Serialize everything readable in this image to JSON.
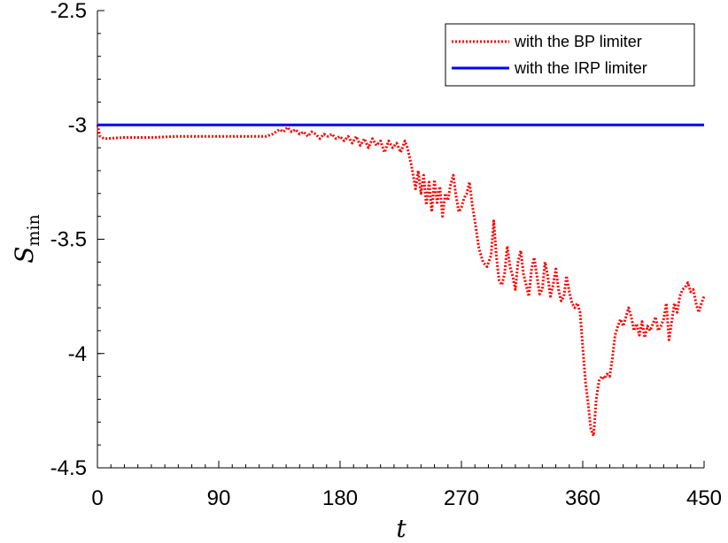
{
  "chart_data": {
    "type": "line",
    "xlabel": "t",
    "ylabel": "S",
    "ylabel_sub": "min",
    "xlim": [
      0,
      450
    ],
    "ylim": [
      -4.5,
      -2.5
    ],
    "xticks": [
      0,
      90,
      180,
      270,
      360,
      450
    ],
    "yticks": [
      -2.5,
      -3,
      -3.5,
      -4,
      -4.5
    ],
    "xtick_labels": [
      "0",
      "90",
      "180",
      "270",
      "360",
      "450"
    ],
    "ytick_labels": [
      "-2.5",
      "-3",
      "-3.5",
      "-4",
      "-4.5"
    ],
    "grid": false,
    "legend": "top-right",
    "series": [
      {
        "name": "with the BP limiter",
        "color": "#ff0000",
        "style": "dotted",
        "x": [
          0,
          2,
          5,
          20,
          40,
          60,
          80,
          100,
          120,
          125,
          130,
          135,
          138,
          141,
          144,
          147,
          150,
          153,
          156,
          159,
          162,
          165,
          168,
          171,
          174,
          177,
          180,
          183,
          186,
          189,
          192,
          195,
          198,
          201,
          204,
          207,
          210,
          213,
          216,
          219,
          222,
          225,
          228,
          230,
          233,
          236,
          238,
          240,
          242,
          244,
          246,
          248,
          250,
          252,
          254,
          256,
          258,
          260,
          262,
          264,
          266,
          268,
          270,
          272,
          274,
          276,
          278,
          280,
          283,
          286,
          289,
          292,
          294,
          296,
          298,
          300,
          302,
          304,
          306,
          308,
          310,
          312,
          314,
          316,
          318,
          320,
          322,
          324,
          326,
          328,
          330,
          332,
          334,
          336,
          338,
          340,
          342,
          344,
          346,
          348,
          350,
          352,
          354,
          356,
          358,
          360,
          362,
          364,
          366,
          368,
          370,
          372,
          374,
          376,
          378,
          380,
          382,
          384,
          386,
          388,
          390,
          392,
          394,
          396,
          398,
          400,
          402,
          404,
          406,
          408,
          410,
          412,
          414,
          416,
          418,
          420,
          422,
          424,
          426,
          428,
          430,
          432,
          434,
          436,
          438,
          440,
          442,
          444,
          446,
          448,
          450
        ],
        "y": [
          -3.0,
          -3.05,
          -3.06,
          -3.055,
          -3.055,
          -3.05,
          -3.05,
          -3.05,
          -3.05,
          -3.05,
          -3.04,
          -3.02,
          -3.03,
          -3.01,
          -3.03,
          -3.02,
          -3.04,
          -3.03,
          -3.05,
          -3.03,
          -3.04,
          -3.06,
          -3.04,
          -3.05,
          -3.04,
          -3.06,
          -3.05,
          -3.07,
          -3.05,
          -3.08,
          -3.05,
          -3.09,
          -3.06,
          -3.1,
          -3.06,
          -3.09,
          -3.07,
          -3.12,
          -3.07,
          -3.1,
          -3.08,
          -3.12,
          -3.07,
          -3.1,
          -3.18,
          -3.28,
          -3.2,
          -3.3,
          -3.22,
          -3.35,
          -3.25,
          -3.38,
          -3.24,
          -3.34,
          -3.27,
          -3.4,
          -3.3,
          -3.33,
          -3.26,
          -3.22,
          -3.31,
          -3.38,
          -3.36,
          -3.32,
          -3.3,
          -3.25,
          -3.35,
          -3.42,
          -3.54,
          -3.6,
          -3.62,
          -3.57,
          -3.42,
          -3.58,
          -3.68,
          -3.7,
          -3.65,
          -3.53,
          -3.62,
          -3.66,
          -3.72,
          -3.6,
          -3.55,
          -3.65,
          -3.7,
          -3.75,
          -3.63,
          -3.58,
          -3.66,
          -3.74,
          -3.72,
          -3.6,
          -3.66,
          -3.75,
          -3.7,
          -3.63,
          -3.72,
          -3.77,
          -3.75,
          -3.66,
          -3.73,
          -3.78,
          -3.8,
          -3.78,
          -3.82,
          -3.97,
          -4.12,
          -4.22,
          -4.33,
          -4.36,
          -4.2,
          -4.12,
          -4.1,
          -4.11,
          -4.09,
          -4.1,
          -4.02,
          -3.92,
          -3.88,
          -3.85,
          -3.88,
          -3.84,
          -3.8,
          -3.84,
          -3.9,
          -3.87,
          -3.92,
          -3.86,
          -3.93,
          -3.88,
          -3.9,
          -3.87,
          -3.84,
          -3.9,
          -3.88,
          -3.85,
          -3.78,
          -3.94,
          -3.86,
          -3.78,
          -3.82,
          -3.75,
          -3.72,
          -3.71,
          -3.69,
          -3.73,
          -3.72,
          -3.78,
          -3.82,
          -3.78,
          -3.75
        ]
      },
      {
        "name": "with the IRP limiter",
        "color": "#0000ff",
        "style": "solid",
        "x": [
          0,
          450
        ],
        "y": [
          -3.0,
          -3.0
        ]
      }
    ]
  }
}
